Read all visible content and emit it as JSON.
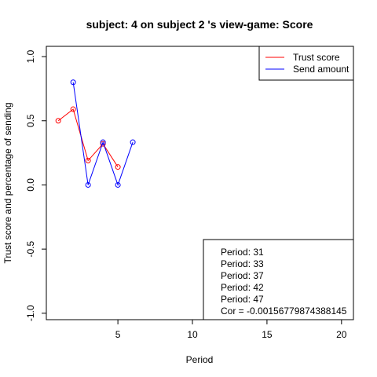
{
  "chart_data": {
    "type": "line",
    "title": "subject:  4  on subject  2 's view-game:  Score",
    "xlabel": "Period",
    "ylabel": "Trust score and percentage of sending",
    "xlim": [
      0.2,
      20.8
    ],
    "ylim": [
      -1.05,
      1.08
    ],
    "xticks": [
      5,
      10,
      15,
      20
    ],
    "yticks": [
      -1.0,
      -0.5,
      0.0,
      0.5,
      1.0
    ],
    "xtick_labels": [
      "5",
      "10",
      "15",
      "20"
    ],
    "ytick_labels": [
      "-1.0",
      "-0.5",
      "0.0",
      "0.5",
      "1.0"
    ],
    "grid": false,
    "legend_position": "top-right",
    "series": [
      {
        "name": "Trust score",
        "color": "#ff0000",
        "x": [
          1,
          2,
          3,
          4,
          5
        ],
        "y": [
          0.5,
          0.59,
          0.19,
          0.32,
          0.14
        ]
      },
      {
        "name": "Send amount",
        "color": "#0000ff",
        "x": [
          2,
          3,
          4,
          5,
          6
        ],
        "y": [
          0.8,
          0.0,
          0.333,
          0.0,
          0.333
        ]
      }
    ],
    "info_box": [
      "Period:  31",
      "Period:  33",
      "Period:  37",
      "Period:  42",
      "Period:  47",
      "Cor =  -0.00156779874388145"
    ]
  }
}
